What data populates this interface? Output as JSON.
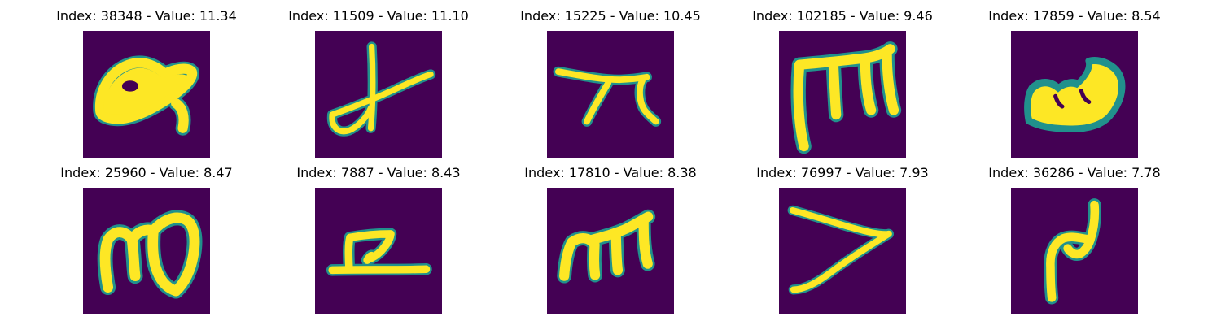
{
  "figure": {
    "colors": {
      "background": "#440154",
      "edge": "#21918c",
      "stroke": "#fde725"
    },
    "panels": [
      {
        "title": "Index: 38348 - Value: 11.34"
      },
      {
        "title": "Index: 11509 - Value: 11.10"
      },
      {
        "title": "Index: 15225 - Value: 10.45"
      },
      {
        "title": "Index: 102185 - Value: 9.46"
      },
      {
        "title": "Index: 17859 - Value: 8.54"
      },
      {
        "title": "Index: 25960 - Value: 8.47"
      },
      {
        "title": "Index: 7887 - Value: 8.43"
      },
      {
        "title": "Index: 17810 - Value: 8.38"
      },
      {
        "title": "Index: 76997 - Value: 7.93"
      },
      {
        "title": "Index: 36286 - Value: 7.78"
      }
    ]
  }
}
